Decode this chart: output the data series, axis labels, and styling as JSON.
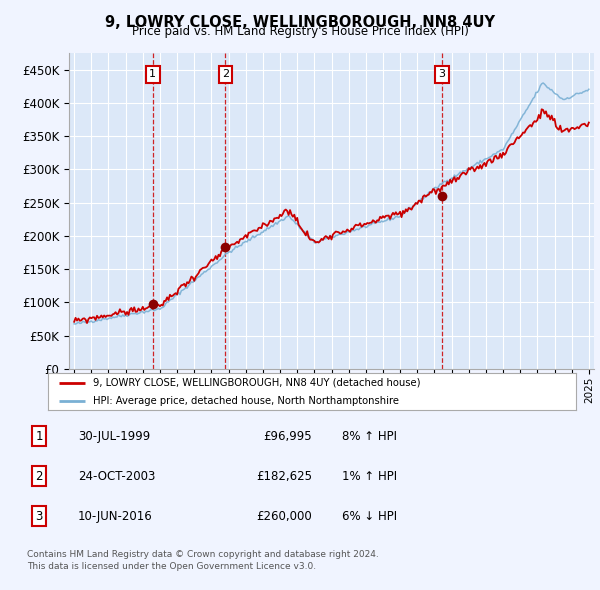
{
  "title": "9, LOWRY CLOSE, WELLINGBOROUGH, NN8 4UY",
  "subtitle": "Price paid vs. HM Land Registry's House Price Index (HPI)",
  "bg_color": "#f0f4ff",
  "plot_bg_color": "#dce8f8",
  "grid_color": "#ffffff",
  "red_line_color": "#cc0000",
  "blue_line_color": "#7ab0d4",
  "trans_years": [
    1999.58,
    2003.82,
    2016.44
  ],
  "trans_prices": [
    96995,
    182625,
    260000
  ],
  "trans_labels": [
    "1",
    "2",
    "3"
  ],
  "transaction_details": [
    {
      "label": "1",
      "date": "30-JUL-1999",
      "price": "£96,995",
      "hpi": "8% ↑ HPI"
    },
    {
      "label": "2",
      "date": "24-OCT-2003",
      "price": "£182,625",
      "hpi": "1% ↑ HPI"
    },
    {
      "label": "3",
      "date": "10-JUN-2016",
      "price": "£260,000",
      "hpi": "6% ↓ HPI"
    }
  ],
  "legend_entry1": "9, LOWRY CLOSE, WELLINGBOROUGH, NN8 4UY (detached house)",
  "legend_entry2": "HPI: Average price, detached house, North Northamptonshire",
  "footer": "Contains HM Land Registry data © Crown copyright and database right 2024.\nThis data is licensed under the Open Government Licence v3.0.",
  "ylim": [
    0,
    475000
  ],
  "yticks": [
    0,
    50000,
    100000,
    150000,
    200000,
    250000,
    300000,
    350000,
    400000,
    450000
  ],
  "xlim_start": 1994.7,
  "xlim_end": 2025.3
}
